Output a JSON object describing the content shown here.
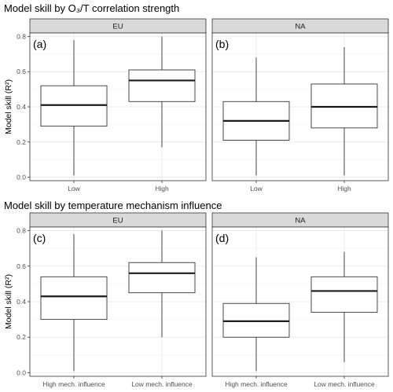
{
  "chart_data": [
    {
      "type": "boxplot",
      "title": "Model skill by O₃/T correlation strength",
      "ylabel": "Model skill (R²)",
      "ylim": [
        -0.02,
        0.82
      ],
      "yticks": [
        "0.0",
        "0.2",
        "0.4",
        "0.6",
        "0.8"
      ],
      "grid": true,
      "categories": [
        "Low",
        "High"
      ],
      "panels": [
        {
          "strip": "EU",
          "tag": "(a)",
          "boxes": [
            {
              "category": "Low",
              "min": 0.01,
              "q1": 0.29,
              "median": 0.41,
              "q3": 0.52,
              "max": 0.78
            },
            {
              "category": "High",
              "min": 0.17,
              "q1": 0.43,
              "median": 0.55,
              "q3": 0.61,
              "max": 0.8
            }
          ]
        },
        {
          "strip": "NA",
          "tag": "(b)",
          "boxes": [
            {
              "category": "Low",
              "min": 0.01,
              "q1": 0.21,
              "median": 0.32,
              "q3": 0.43,
              "max": 0.68
            },
            {
              "category": "High",
              "min": 0.01,
              "q1": 0.28,
              "median": 0.4,
              "q3": 0.53,
              "max": 0.74
            }
          ]
        }
      ]
    },
    {
      "type": "boxplot",
      "title": "Model skill by temperature mechanism influence",
      "ylabel": "Model skill (R²)",
      "ylim": [
        -0.02,
        0.82
      ],
      "yticks": [
        "0.0",
        "0.2",
        "0.4",
        "0.6",
        "0.8"
      ],
      "grid": true,
      "categories": [
        "High mech. influence",
        "Low mech. influence"
      ],
      "panels": [
        {
          "strip": "EU",
          "tag": "(c)",
          "boxes": [
            {
              "category": "High mech. influence",
              "min": 0.01,
              "q1": 0.3,
              "median": 0.43,
              "q3": 0.54,
              "max": 0.78
            },
            {
              "category": "Low mech. influence",
              "min": 0.2,
              "q1": 0.45,
              "median": 0.56,
              "q3": 0.62,
              "max": 0.8
            }
          ]
        },
        {
          "strip": "NA",
          "tag": "(d)",
          "boxes": [
            {
              "category": "High mech. influence",
              "min": 0.01,
              "q1": 0.2,
              "median": 0.29,
              "q3": 0.39,
              "max": 0.65
            },
            {
              "category": "Low mech. influence",
              "min": 0.06,
              "q1": 0.34,
              "median": 0.46,
              "q3": 0.54,
              "max": 0.68
            }
          ]
        }
      ]
    }
  ]
}
